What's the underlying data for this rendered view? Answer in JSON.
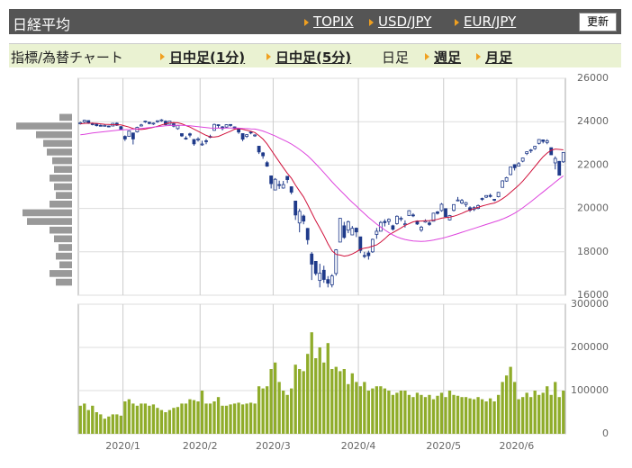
{
  "header": {
    "title": "日経平均",
    "links": [
      "TOPIX",
      "USD/JPY",
      "EUR/JPY"
    ],
    "button": "更新"
  },
  "tabs": {
    "label": "指標/為替チャート",
    "items": [
      {
        "label": "日中足(1分)",
        "link": true
      },
      {
        "label": "日中足(5分)",
        "link": true
      },
      {
        "label": "日足",
        "link": false
      },
      {
        "label": "週足",
        "link": true
      },
      {
        "label": "月足",
        "link": true
      }
    ]
  },
  "chart_data": [
    {
      "type": "candlestick",
      "color": "#1f3a8a",
      "up_fill": "#ffffff",
      "ylim": [
        16000,
        26000
      ],
      "yticks": [
        16000,
        18000,
        20000,
        22000,
        24000,
        26000
      ],
      "grid": true,
      "open": [
        23900,
        23990,
        24050,
        23920,
        23890,
        23830,
        23800,
        23800,
        23800,
        23930,
        23770,
        23320,
        23320,
        23480,
        23530,
        23800,
        24000,
        23970,
        23900,
        24000,
        24060,
        24020,
        23880,
        23900,
        23680,
        23450,
        23240,
        23440,
        23180,
        23200,
        22940,
        23120,
        23300,
        23600,
        23860,
        23760,
        23750,
        23870,
        23760,
        23700,
        23450,
        23320,
        23520,
        23380,
        22870,
        22560,
        22110,
        21500,
        20850,
        21100,
        20940,
        21480,
        21000,
        20340,
        19330,
        19650,
        19080,
        17900,
        17560,
        16680,
        17150,
        16720,
        16480,
        17000,
        18450,
        19200,
        19000,
        18780,
        19090,
        18690,
        17830,
        17950,
        18000,
        18800,
        18950,
        19400,
        19400,
        19200,
        19300,
        19500,
        19250,
        19670,
        19700,
        19420,
        19000,
        19370,
        19330,
        19410,
        19840,
        19900,
        19990,
        19470,
        19910,
        20380,
        20250,
        20180,
        20030,
        19950,
        20000,
        20460,
        20520,
        20600,
        20420,
        20540,
        20970,
        21260,
        21560,
        22020,
        21950,
        22180,
        22530,
        22670,
        22760,
        23000,
        23160,
        23040,
        22800,
        22100,
        22170,
        22150
      ],
      "high": [
        24000,
        24090,
        24060,
        23960,
        23900,
        23870,
        23860,
        23820,
        23940,
        23970,
        23800,
        23370,
        23580,
        23490,
        23770,
        23900,
        24050,
        24000,
        23960,
        24060,
        24120,
        24060,
        24040,
        23980,
        23850,
        23450,
        23330,
        23490,
        23200,
        23280,
        23120,
        23200,
        23400,
        23910,
        23870,
        23800,
        23880,
        23880,
        23780,
        23710,
        23460,
        23430,
        23570,
        23420,
        22870,
        22600,
        22190,
        21520,
        21400,
        21280,
        21270,
        21480,
        21020,
        20350,
        19980,
        19720,
        19100,
        17990,
        17560,
        17450,
        17360,
        16880,
        16970,
        18120,
        19560,
        19380,
        19440,
        19190,
        19120,
        18690,
        18000,
        18050,
        18610,
        19100,
        19420,
        19500,
        19540,
        19250,
        19680,
        19630,
        19450,
        19920,
        19780,
        19450,
        19200,
        19500,
        19450,
        19800,
        19880,
        20250,
        20000,
        19700,
        20180,
        20530,
        20440,
        20300,
        20100,
        20100,
        20180,
        20500,
        20610,
        20680,
        20430,
        20760,
        21300,
        21460,
        21930,
        22040,
        22140,
        22340,
        22630,
        22740,
        22890,
        23190,
        23180,
        23190,
        22810,
        22400,
        22190,
        22600
      ],
      "low": [
        23870,
        23950,
        23900,
        23830,
        23780,
        23790,
        23780,
        23750,
        23790,
        23800,
        23620,
        23110,
        23300,
        22950,
        23500,
        23780,
        23940,
        23880,
        23850,
        23950,
        24000,
        23830,
        23870,
        23740,
        23630,
        23300,
        23170,
        23280,
        22890,
        23080,
        22890,
        22960,
        23240,
        23580,
        23700,
        23600,
        23700,
        23770,
        23640,
        23440,
        23100,
        23250,
        23420,
        23300,
        22510,
        22290,
        21920,
        20920,
        20850,
        20900,
        20910,
        21170,
        20650,
        19470,
        18900,
        19270,
        18340,
        16700,
        16910,
        16360,
        16570,
        16360,
        16360,
        16900,
        18450,
        18600,
        18860,
        18770,
        18680,
        17940,
        17710,
        17640,
        17950,
        18600,
        18950,
        19170,
        19240,
        18980,
        19250,
        19410,
        19120,
        19650,
        19600,
        19240,
        18920,
        19340,
        19200,
        19400,
        19720,
        19850,
        19600,
        19450,
        19860,
        20330,
        20200,
        20070,
        19840,
        19880,
        19960,
        20350,
        20480,
        20500,
        20330,
        20510,
        20960,
        21230,
        21530,
        21750,
        21940,
        22130,
        22460,
        22560,
        22700,
        22950,
        23000,
        22960,
        22470,
        21800,
        21530,
        22100
      ],
      "close": [
        23952,
        24066,
        23934,
        23864,
        23816,
        23821,
        23830,
        23782,
        23924,
        23837,
        23656,
        23204,
        23575,
        23204,
        23739,
        23850,
        24025,
        23916,
        23933,
        24041,
        24083,
        23864,
        24031,
        23795,
        23827,
        23343,
        23215,
        23379,
        22977,
        23205,
        22971,
        23084,
        23319,
        23873,
        23827,
        23685,
        23861,
        23827,
        23687,
        23523,
        23194,
        23400,
        23479,
        23386,
        22605,
        22426,
        21948,
        21142,
        21344,
        21082,
        21100,
        21329,
        20749,
        19698,
        19867,
        19416,
        18559,
        17431,
        17002,
        17011,
        16726,
        16552,
        16887,
        18092,
        19546,
        18664,
        19389,
        19084,
        18917,
        18065,
        17819,
        17820,
        18576,
        18950,
        19353,
        19345,
        19499,
        19043,
        19639,
        19551,
        19290,
        19897,
        19669,
        19281,
        19138,
        19429,
        19262,
        19783,
        19772,
        20194,
        19619,
        19674,
        20179,
        20390,
        20366,
        20267,
        19915,
        20037,
        20134,
        20433,
        20595,
        20552,
        20388,
        20741,
        21271,
        21419,
        21916,
        21877,
        22062,
        22325,
        22613,
        22695,
        22864,
        23178,
        23091,
        23124,
        22473,
        22305,
        21531,
        22582
      ],
      "lines": [
        {
          "color": "#d0103a",
          "values": [
            23900,
            23920,
            23930,
            23930,
            23920,
            23900,
            23880,
            23870,
            23860,
            23860,
            23850,
            23800,
            23750,
            23680,
            23650,
            23640,
            23660,
            23700,
            23740,
            23790,
            23850,
            23900,
            23950,
            23960,
            23950,
            23900,
            23820,
            23750,
            23650,
            23560,
            23460,
            23370,
            23300,
            23290,
            23320,
            23400,
            23480,
            23560,
            23650,
            23680,
            23650,
            23600,
            23560,
            23500,
            23360,
            23200,
            22980,
            22700,
            22420,
            22150,
            21880,
            21620,
            21390,
            21080,
            20800,
            20530,
            20180,
            19800,
            19430,
            19100,
            18750,
            18370,
            18050,
            17880,
            17850,
            17800,
            17830,
            17900,
            18000,
            18120,
            18170,
            18200,
            18260,
            18320,
            18450,
            18600,
            18780,
            18890,
            18990,
            19100,
            19220,
            19300,
            19380,
            19420,
            19420,
            19430,
            19440,
            19460,
            19500,
            19550,
            19580,
            19600,
            19640,
            19700,
            19770,
            19860,
            19930,
            19990,
            20050,
            20110,
            20160,
            20210,
            20250,
            20330,
            20450,
            20580,
            20740,
            20900,
            21070,
            21260,
            21480,
            21700,
            21930,
            22160,
            22380,
            22550,
            22680,
            22740,
            22720,
            22700
          ]
        },
        {
          "color": "#dd44dd",
          "values": [
            23400,
            23420,
            23450,
            23480,
            23500,
            23520,
            23540,
            23560,
            23580,
            23600,
            23620,
            23630,
            23640,
            23650,
            23670,
            23690,
            23710,
            23730,
            23750,
            23770,
            23790,
            23810,
            23820,
            23830,
            23830,
            23830,
            23820,
            23810,
            23790,
            23770,
            23750,
            23730,
            23710,
            23700,
            23700,
            23700,
            23710,
            23710,
            23710,
            23700,
            23690,
            23680,
            23670,
            23660,
            23620,
            23570,
            23500,
            23420,
            23340,
            23250,
            23160,
            23070,
            22970,
            22850,
            22720,
            22580,
            22430,
            22250,
            22060,
            21860,
            21650,
            21440,
            21230,
            21030,
            20840,
            20650,
            20460,
            20280,
            20110,
            19930,
            19760,
            19590,
            19430,
            19280,
            19140,
            19010,
            18890,
            18780,
            18690,
            18620,
            18570,
            18530,
            18500,
            18490,
            18480,
            18490,
            18510,
            18540,
            18580,
            18620,
            18670,
            18720,
            18780,
            18840,
            18900,
            18960,
            19020,
            19080,
            19140,
            19200,
            19260,
            19320,
            19380,
            19440,
            19510,
            19590,
            19680,
            19780,
            19900,
            20030,
            20170,
            20310,
            20460,
            20610,
            20760,
            20910,
            21060,
            21210,
            21360,
            21500
          ]
        }
      ]
    },
    {
      "type": "bar",
      "color": "#8fac2a",
      "ylim": [
        0,
        300000
      ],
      "yticks": [
        0,
        100000,
        200000,
        300000
      ],
      "grid": true,
      "categories": [
        null,
        null,
        null,
        null,
        null,
        null,
        null,
        null,
        null,
        null,
        null,
        "2020/1",
        null,
        null,
        null,
        null,
        null,
        null,
        null,
        null,
        null,
        null,
        null,
        null,
        null,
        null,
        null,
        null,
        null,
        null,
        "2020/2",
        null,
        null,
        null,
        null,
        null,
        null,
        null,
        null,
        null,
        null,
        null,
        null,
        null,
        null,
        null,
        null,
        null,
        "2020/3",
        null,
        null,
        null,
        null,
        null,
        null,
        null,
        null,
        null,
        null,
        null,
        null,
        null,
        null,
        null,
        null,
        null,
        null,
        null,
        null,
        "2020/4",
        null,
        null,
        null,
        null,
        null,
        null,
        null,
        null,
        null,
        null,
        null,
        null,
        null,
        null,
        null,
        null,
        null,
        null,
        null,
        null,
        "2020/5",
        null,
        null,
        null,
        null,
        null,
        null,
        null,
        null,
        null,
        null,
        null,
        null,
        null,
        null,
        null,
        null,
        null,
        "2020/6",
        null,
        null,
        null,
        null,
        null,
        null,
        null,
        null,
        null,
        null,
        null
      ],
      "values": [
        65000,
        70000,
        55000,
        65000,
        50000,
        45000,
        35000,
        40000,
        45000,
        45000,
        42000,
        75000,
        80000,
        70000,
        65000,
        70000,
        70000,
        65000,
        68000,
        60000,
        55000,
        50000,
        55000,
        60000,
        62000,
        70000,
        70000,
        80000,
        78000,
        75000,
        100000,
        70000,
        70000,
        75000,
        85000,
        65000,
        65000,
        68000,
        70000,
        72000,
        68000,
        70000,
        72000,
        70000,
        110000,
        105000,
        110000,
        150000,
        165000,
        120000,
        100000,
        90000,
        105000,
        160000,
        150000,
        145000,
        185000,
        235000,
        175000,
        200000,
        165000,
        210000,
        150000,
        155000,
        145000,
        150000,
        115000,
        140000,
        120000,
        110000,
        120000,
        100000,
        105000,
        110000,
        110000,
        105000,
        100000,
        90000,
        95000,
        100000,
        100000,
        90000,
        85000,
        95000,
        90000,
        85000,
        90000,
        80000,
        88000,
        95000,
        85000,
        100000,
        90000,
        88000,
        85000,
        85000,
        82000,
        80000,
        85000,
        80000,
        75000,
        82000,
        75000,
        90000,
        120000,
        135000,
        155000,
        120000,
        80000,
        85000,
        95000,
        85000,
        100000,
        90000,
        95000,
        110000,
        90000,
        120000,
        85000,
        100000
      ]
    },
    {
      "type": "histogram",
      "orientation": "horizontal",
      "color": "#999999",
      "bins": [
        16400,
        16800,
        17200,
        17600,
        18000,
        18400,
        18800,
        19200,
        19600,
        20000,
        20400,
        20800,
        21200,
        21600,
        22000,
        22400,
        22800,
        23200,
        23600,
        24000,
        24400
      ],
      "values": [
        18,
        25,
        14,
        18,
        15,
        20,
        25,
        50,
        55,
        25,
        18,
        20,
        25,
        20,
        22,
        28,
        32,
        40,
        62,
        14
      ]
    }
  ]
}
